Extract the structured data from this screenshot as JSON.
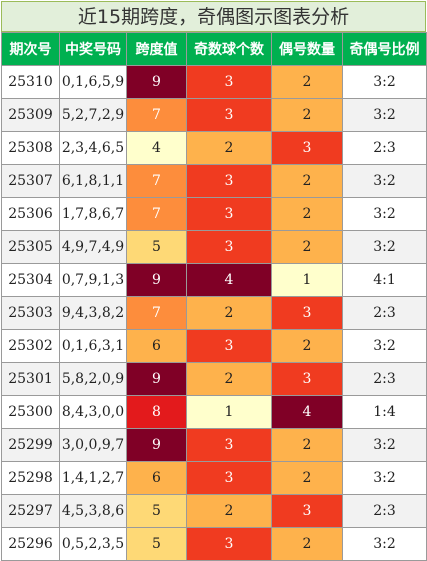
{
  "title": "近15期跨度，奇偶图示图表分析",
  "chart_data": {
    "type": "table",
    "columns": [
      "期次号",
      "中奖号码",
      "跨度值",
      "奇数球个数",
      "偶号数量",
      "奇偶号比例"
    ],
    "rows": [
      {
        "issue": "25310",
        "numbers": "0,1,6,5,9",
        "span": 9,
        "odd": 3,
        "even": 2,
        "ratio": "3:2"
      },
      {
        "issue": "25309",
        "numbers": "5,2,7,2,9",
        "span": 7,
        "odd": 3,
        "even": 2,
        "ratio": "3:2"
      },
      {
        "issue": "25308",
        "numbers": "2,3,4,6,5",
        "span": 4,
        "odd": 2,
        "even": 3,
        "ratio": "2:3"
      },
      {
        "issue": "25307",
        "numbers": "6,1,8,1,1",
        "span": 7,
        "odd": 3,
        "even": 2,
        "ratio": "3:2"
      },
      {
        "issue": "25306",
        "numbers": "1,7,8,6,7",
        "span": 7,
        "odd": 3,
        "even": 2,
        "ratio": "3:2"
      },
      {
        "issue": "25305",
        "numbers": "4,9,7,4,9",
        "span": 5,
        "odd": 3,
        "even": 2,
        "ratio": "3:2"
      },
      {
        "issue": "25304",
        "numbers": "0,7,9,1,3",
        "span": 9,
        "odd": 4,
        "even": 1,
        "ratio": "4:1"
      },
      {
        "issue": "25303",
        "numbers": "9,4,3,8,2",
        "span": 7,
        "odd": 2,
        "even": 3,
        "ratio": "2:3"
      },
      {
        "issue": "25302",
        "numbers": "0,1,6,3,1",
        "span": 6,
        "odd": 3,
        "even": 2,
        "ratio": "3:2"
      },
      {
        "issue": "25301",
        "numbers": "5,8,2,0,9",
        "span": 9,
        "odd": 2,
        "even": 3,
        "ratio": "2:3"
      },
      {
        "issue": "25300",
        "numbers": "8,4,3,0,0",
        "span": 8,
        "odd": 1,
        "even": 4,
        "ratio": "1:4"
      },
      {
        "issue": "25299",
        "numbers": "3,0,0,9,7",
        "span": 9,
        "odd": 3,
        "even": 2,
        "ratio": "3:2"
      },
      {
        "issue": "25298",
        "numbers": "1,4,1,2,7",
        "span": 6,
        "odd": 3,
        "even": 2,
        "ratio": "3:2"
      },
      {
        "issue": "25297",
        "numbers": "4,5,3,8,6",
        "span": 5,
        "odd": 2,
        "even": 3,
        "ratio": "2:3"
      },
      {
        "issue": "25296",
        "numbers": "0,5,2,3,5",
        "span": 5,
        "odd": 3,
        "even": 2,
        "ratio": "3:2"
      }
    ]
  },
  "colors": {
    "header_bg": "#00b050",
    "header_text": "#ffffff",
    "title_bg": "#e2efda",
    "span_scale": {
      "4": "#ffffcc",
      "5": "#fed976",
      "6": "#feb24c",
      "7": "#fd8d3c",
      "8": "#e31a1c",
      "9": "#800026"
    },
    "odd_scale": {
      "1": "#ffffcc",
      "2": "#feb24c",
      "3": "#f03b20",
      "4": "#800026"
    },
    "even_scale": {
      "1": "#ffffcc",
      "2": "#feb24c",
      "3": "#f03b20",
      "4": "#800026"
    }
  }
}
